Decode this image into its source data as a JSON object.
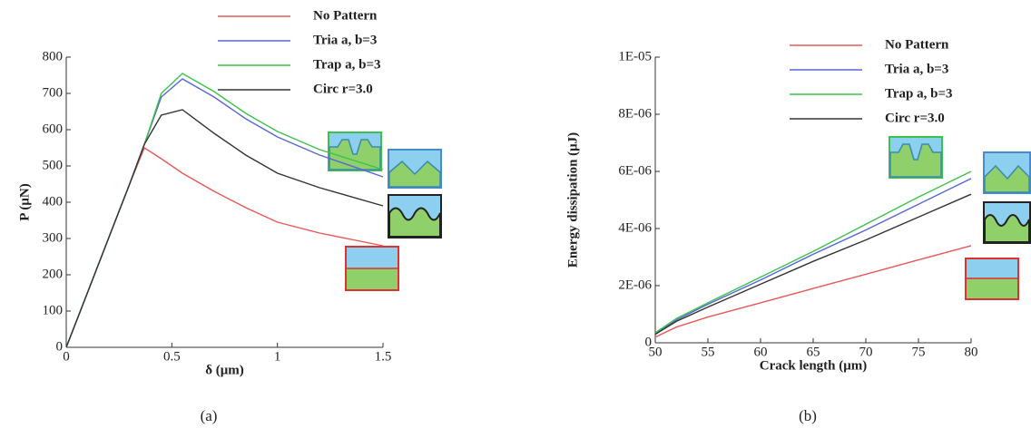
{
  "chart_data": [
    {
      "type": "line",
      "caption": "(a)",
      "x_label": "δ (μm)",
      "y_label": "P (μN)",
      "x": [
        0,
        0.1,
        0.2,
        0.3,
        0.37,
        0.45,
        0.55,
        0.7,
        0.85,
        1.0,
        1.2,
        1.5
      ],
      "series": [
        {
          "name": "No Pattern",
          "color": "#e8585a",
          "values": [
            0,
            150,
            300,
            450,
            550,
            520,
            480,
            430,
            385,
            345,
            315,
            280
          ]
        },
        {
          "name": "Tria a, b=3",
          "color": "#5865d8",
          "values": [
            0,
            150,
            300,
            450,
            560,
            690,
            740,
            690,
            630,
            580,
            530,
            470
          ]
        },
        {
          "name": "Trap a, b=3",
          "color": "#3cc24a",
          "values": [
            0,
            150,
            300,
            450,
            560,
            700,
            755,
            705,
            645,
            595,
            545,
            490
          ]
        },
        {
          "name": "Circ r=3.0",
          "color": "#333333",
          "values": [
            0,
            150,
            300,
            450,
            560,
            640,
            655,
            590,
            530,
            480,
            440,
            390
          ]
        }
      ],
      "xlim": [
        0,
        1.5
      ],
      "xticks": [
        0,
        0.5,
        1,
        1.5
      ],
      "ylim": [
        0,
        800
      ],
      "yticks": [
        0,
        100,
        200,
        300,
        400,
        500,
        600,
        700,
        800
      ],
      "legend": "upper right"
    },
    {
      "type": "line",
      "caption": "(b)",
      "x_label": "Crack  length (μm)",
      "y_label": "Energy dissipation (μJ)",
      "x": [
        50,
        52,
        55,
        60,
        65,
        70,
        75,
        80
      ],
      "series": [
        {
          "name": "No Pattern",
          "color": "#e8585a",
          "values": [
            2e-07,
            5.5e-07,
            9e-07,
            1.4e-06,
            1.9e-06,
            2.4e-06,
            2.9e-06,
            3.4e-06
          ]
        },
        {
          "name": "Tria a, b=3",
          "color": "#5865d8",
          "values": [
            3e-07,
            8e-07,
            1.35e-06,
            2.2e-06,
            3.1e-06,
            3.95e-06,
            4.85e-06,
            5.75e-06
          ]
        },
        {
          "name": "Trap a, b=3",
          "color": "#3cc24a",
          "values": [
            3.5e-07,
            8.5e-07,
            1.4e-06,
            2.3e-06,
            3.2e-06,
            4.15e-06,
            5.1e-06,
            6e-06
          ]
        },
        {
          "name": "Circ r=3.0",
          "color": "#333333",
          "values": [
            3e-07,
            7.5e-07,
            1.25e-06,
            2.05e-06,
            2.85e-06,
            3.6e-06,
            4.4e-06,
            5.2e-06
          ]
        }
      ],
      "xlim": [
        50,
        80
      ],
      "xticks": [
        50,
        55,
        60,
        65,
        70,
        75,
        80
      ],
      "ylim": [
        0,
        1e-05
      ],
      "yticks": [
        0,
        {
          "value": 2e-06,
          "label": "2E-06"
        },
        {
          "value": 4e-06,
          "label": "4E-06"
        },
        {
          "value": 6e-06,
          "label": "6E-06"
        },
        {
          "value": 8e-06,
          "label": "8E-06"
        },
        {
          "value": 1e-05,
          "label": "1E-05"
        }
      ],
      "legend": "upper right"
    }
  ]
}
